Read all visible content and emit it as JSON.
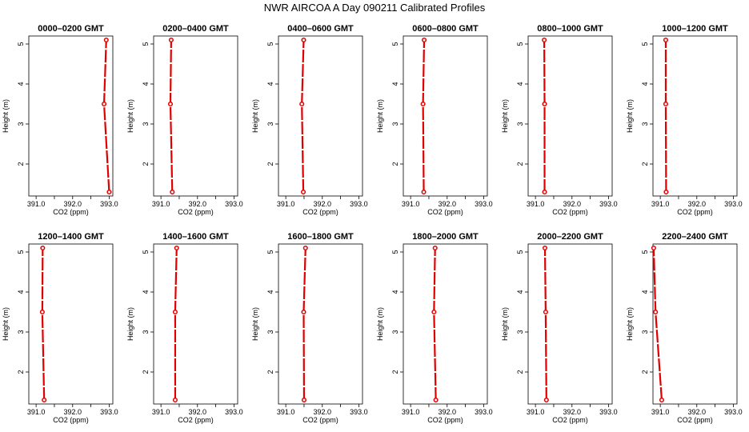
{
  "title": "NWR AIRCOA A  Day 090211  Calibrated Profiles",
  "colors": {
    "series": "#e00000",
    "axis": "#000000",
    "background": "#ffffff"
  },
  "chart_data": [
    {
      "type": "line",
      "title": "0000–0200 GMT",
      "xlabel": "CO2 (ppm)",
      "ylabel": "Height (m)",
      "xlim": [
        390.8,
        393.1
      ],
      "ylim": [
        1.2,
        5.2
      ],
      "x_ticks": [
        "391.0",
        "392.0",
        "393.0"
      ],
      "y_ticks": [
        "2",
        "3",
        "4",
        "5"
      ],
      "x": [
        393.0,
        392.86,
        392.92
      ],
      "y": [
        1.3,
        3.5,
        5.1
      ]
    },
    {
      "type": "line",
      "title": "0200–0400 GMT",
      "xlabel": "CO2 (ppm)",
      "ylabel": "Height (m)",
      "xlim": [
        390.8,
        393.1
      ],
      "ylim": [
        1.2,
        5.2
      ],
      "x_ticks": [
        "391.0",
        "392.0",
        "393.0"
      ],
      "y_ticks": [
        "2",
        "3",
        "4",
        "5"
      ],
      "x": [
        391.31,
        391.26,
        391.28
      ],
      "y": [
        1.3,
        3.5,
        5.1
      ]
    },
    {
      "type": "line",
      "title": "0400–0600 GMT",
      "xlabel": "CO2 (ppm)",
      "ylabel": "Height (m)",
      "xlim": [
        390.8,
        393.1
      ],
      "ylim": [
        1.2,
        5.2
      ],
      "x_ticks": [
        "391.0",
        "392.0",
        "393.0"
      ],
      "y_ticks": [
        "2",
        "3",
        "4",
        "5"
      ],
      "x": [
        391.48,
        391.44,
        391.49
      ],
      "y": [
        1.3,
        3.5,
        5.1
      ]
    },
    {
      "type": "line",
      "title": "0600–0800 GMT",
      "xlabel": "CO2 (ppm)",
      "ylabel": "Height (m)",
      "xlim": [
        390.8,
        393.1
      ],
      "ylim": [
        1.2,
        5.2
      ],
      "x_ticks": [
        "391.0",
        "392.0",
        "393.0"
      ],
      "y_ticks": [
        "2",
        "3",
        "4",
        "5"
      ],
      "x": [
        391.36,
        391.34,
        391.37
      ],
      "y": [
        1.3,
        3.5,
        5.1
      ]
    },
    {
      "type": "line",
      "title": "0800–1000 GMT",
      "xlabel": "CO2 (ppm)",
      "ylabel": "Height (m)",
      "xlim": [
        390.8,
        393.1
      ],
      "ylim": [
        1.2,
        5.2
      ],
      "x_ticks": [
        "391.0",
        "392.0",
        "393.0"
      ],
      "y_ticks": [
        "2",
        "3",
        "4",
        "5"
      ],
      "x": [
        391.25,
        391.25,
        391.24
      ],
      "y": [
        1.3,
        3.5,
        5.1
      ]
    },
    {
      "type": "line",
      "title": "1000–1200 GMT",
      "xlabel": "CO2 (ppm)",
      "ylabel": "Height (m)",
      "xlim": [
        390.8,
        393.1
      ],
      "ylim": [
        1.2,
        5.2
      ],
      "x_ticks": [
        "391.0",
        "392.0",
        "393.0"
      ],
      "y_ticks": [
        "2",
        "3",
        "4",
        "5"
      ],
      "x": [
        391.16,
        391.15,
        391.15
      ],
      "y": [
        1.3,
        3.5,
        5.1
      ]
    },
    {
      "type": "line",
      "title": "1200–1400 GMT",
      "xlabel": "CO2 (ppm)",
      "ylabel": "Height (m)",
      "xlim": [
        390.8,
        393.1
      ],
      "ylim": [
        1.2,
        5.2
      ],
      "x_ticks": [
        "391.0",
        "392.0",
        "393.0"
      ],
      "y_ticks": [
        "2",
        "3",
        "4",
        "5"
      ],
      "x": [
        391.22,
        391.17,
        391.18
      ],
      "y": [
        1.3,
        3.5,
        5.1
      ]
    },
    {
      "type": "line",
      "title": "1400–1600 GMT",
      "xlabel": "CO2 (ppm)",
      "ylabel": "Height (m)",
      "xlim": [
        390.8,
        393.1
      ],
      "ylim": [
        1.2,
        5.2
      ],
      "x_ticks": [
        "391.0",
        "392.0",
        "393.0"
      ],
      "y_ticks": [
        "2",
        "3",
        "4",
        "5"
      ],
      "x": [
        391.39,
        391.39,
        391.43
      ],
      "y": [
        1.3,
        3.5,
        5.1
      ]
    },
    {
      "type": "line",
      "title": "1600–1800 GMT",
      "xlabel": "CO2 (ppm)",
      "ylabel": "Height (m)",
      "xlim": [
        390.8,
        393.1
      ],
      "ylim": [
        1.2,
        5.2
      ],
      "x_ticks": [
        "391.0",
        "392.0",
        "393.0"
      ],
      "y_ticks": [
        "2",
        "3",
        "4",
        "5"
      ],
      "x": [
        391.5,
        391.49,
        391.54
      ],
      "y": [
        1.3,
        3.5,
        5.1
      ]
    },
    {
      "type": "line",
      "title": "1800–2000 GMT",
      "xlabel": "CO2 (ppm)",
      "ylabel": "Height (m)",
      "xlim": [
        390.8,
        393.1
      ],
      "ylim": [
        1.2,
        5.2
      ],
      "x_ticks": [
        "391.0",
        "392.0",
        "393.0"
      ],
      "y_ticks": [
        "2",
        "3",
        "4",
        "5"
      ],
      "x": [
        391.69,
        391.64,
        391.67
      ],
      "y": [
        1.3,
        3.5,
        5.1
      ]
    },
    {
      "type": "line",
      "title": "2000–2200 GMT",
      "xlabel": "CO2 (ppm)",
      "ylabel": "Height (m)",
      "xlim": [
        390.8,
        393.1
      ],
      "ylim": [
        1.2,
        5.2
      ],
      "x_ticks": [
        "391.0",
        "392.0",
        "393.0"
      ],
      "y_ticks": [
        "2",
        "3",
        "4",
        "5"
      ],
      "x": [
        391.3,
        391.28,
        391.26
      ],
      "y": [
        1.3,
        3.5,
        5.1
      ]
    },
    {
      "type": "line",
      "title": "2200–2400 GMT",
      "xlabel": "CO2 (ppm)",
      "ylabel": "Height (m)",
      "xlim": [
        390.8,
        393.1
      ],
      "ylim": [
        1.2,
        5.2
      ],
      "x_ticks": [
        "391.0",
        "392.0",
        "393.0"
      ],
      "y_ticks": [
        "2",
        "3",
        "4",
        "5"
      ],
      "x": [
        391.04,
        390.87,
        390.82
      ],
      "y": [
        1.3,
        3.5,
        5.1
      ]
    }
  ]
}
